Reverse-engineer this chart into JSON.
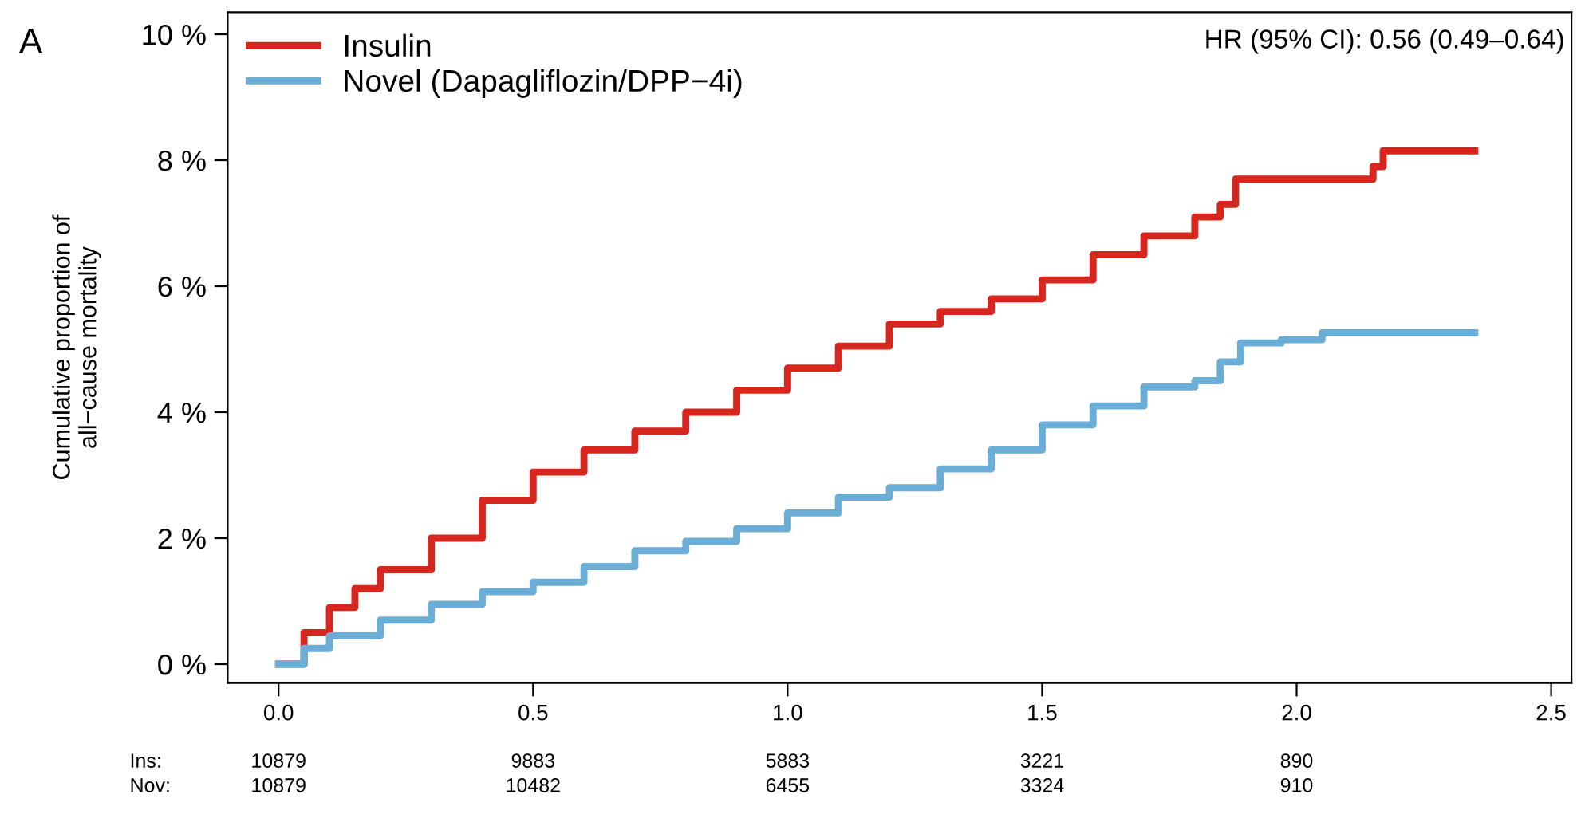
{
  "chart_data": {
    "type": "step",
    "ylabel": "Cumulative proportion of\nall−cause mortality",
    "annotations": [
      "A",
      "HR (95% CI): 0.56 (0.49–0.64)",
      "Ins:",
      "10879",
      "9883",
      "5883",
      "3221",
      "890",
      "Nov:",
      "10879",
      "10482",
      "6455",
      "3324",
      "910"
    ],
    "xlim": [
      -0.1,
      2.54
    ],
    "ylim": [
      -0.3,
      10.35
    ],
    "xticks": [
      {
        "value": 0,
        "label": "0.0"
      },
      {
        "value": 0.5,
        "label": "0.5"
      },
      {
        "value": 1,
        "label": "1.0"
      },
      {
        "value": 1.5,
        "label": "1.5"
      },
      {
        "value": 2,
        "label": "2.0"
      },
      {
        "value": 2.5,
        "label": "2.5"
      }
    ],
    "yticks": [
      {
        "value": 0,
        "label": "0 %"
      },
      {
        "value": 2,
        "label": "2 %"
      },
      {
        "value": 4,
        "label": "4 %"
      },
      {
        "value": 6,
        "label": "6 %"
      },
      {
        "value": 8,
        "label": "8 %"
      },
      {
        "value": 10,
        "label": "10 %"
      }
    ],
    "grid": false,
    "legend": "top left",
    "series": [
      {
        "name": "Insulin",
        "color": "#d7261e",
        "x": [
          0,
          0.05,
          0.1,
          0.15,
          0.2,
          0.3,
          0.4,
          0.5,
          0.6,
          0.7,
          0.8,
          0.9,
          1.0,
          1.1,
          1.2,
          1.3,
          1.4,
          1.5,
          1.6,
          1.7,
          1.8,
          1.85,
          1.88,
          2.15,
          2.17,
          2.35
        ],
        "values": [
          0,
          0.5,
          0.9,
          1.2,
          1.5,
          2.0,
          2.6,
          3.05,
          3.4,
          3.7,
          4.0,
          4.35,
          4.7,
          5.05,
          5.4,
          5.6,
          5.8,
          6.1,
          6.5,
          6.8,
          7.1,
          7.3,
          7.7,
          7.9,
          8.15,
          8.15
        ]
      },
      {
        "name": "Novel (Dapagliflozin/DPP−4i)",
        "color": "#6aaed8",
        "x": [
          0,
          0.05,
          0.1,
          0.2,
          0.3,
          0.4,
          0.5,
          0.6,
          0.7,
          0.8,
          0.9,
          1.0,
          1.1,
          1.2,
          1.3,
          1.4,
          1.5,
          1.6,
          1.7,
          1.8,
          1.85,
          1.89,
          1.97,
          2.05,
          2.35
        ],
        "values": [
          0,
          0.25,
          0.45,
          0.7,
          0.95,
          1.15,
          1.3,
          1.55,
          1.8,
          1.95,
          2.15,
          2.4,
          2.65,
          2.8,
          3.1,
          3.4,
          3.8,
          4.1,
          4.4,
          4.5,
          4.8,
          5.1,
          5.15,
          5.26,
          5.26
        ]
      }
    ]
  }
}
